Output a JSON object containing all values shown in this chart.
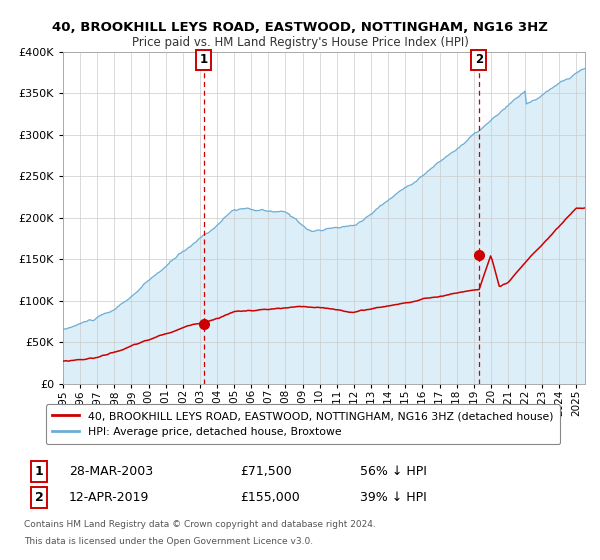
{
  "title": "40, BROOKHILL LEYS ROAD, EASTWOOD, NOTTINGHAM, NG16 3HZ",
  "subtitle": "Price paid vs. HM Land Registry's House Price Index (HPI)",
  "hpi_color": "#6daed4",
  "hpi_fill_color": "#dceef8",
  "price_color": "#cc0000",
  "marker_color": "#cc0000",
  "ylim": [
    0,
    400000
  ],
  "yticks": [
    0,
    50000,
    100000,
    150000,
    200000,
    250000,
    300000,
    350000,
    400000
  ],
  "legend_label_price": "40, BROOKHILL LEYS ROAD, EASTWOOD, NOTTINGHAM, NG16 3HZ (detached house)",
  "legend_label_hpi": "HPI: Average price, detached house, Broxtowe",
  "sale1_date_label": "28-MAR-2003",
  "sale1_price": 71500,
  "sale1_price_label": "£71,500",
  "sale1_hpi_label": "56% ↓ HPI",
  "sale2_date_label": "12-APR-2019",
  "sale2_price": 155000,
  "sale2_price_label": "£155,000",
  "sale2_hpi_label": "39% ↓ HPI",
  "footer_line1": "Contains HM Land Registry data © Crown copyright and database right 2024.",
  "footer_line2": "This data is licensed under the Open Government Licence v3.0.",
  "background_color": "#ffffff",
  "plot_bg_color": "#ffffff",
  "grid_color": "#cccccc",
  "vline_color": "#cc0000",
  "sale1_year": 2003.21,
  "sale2_year": 2019.29
}
